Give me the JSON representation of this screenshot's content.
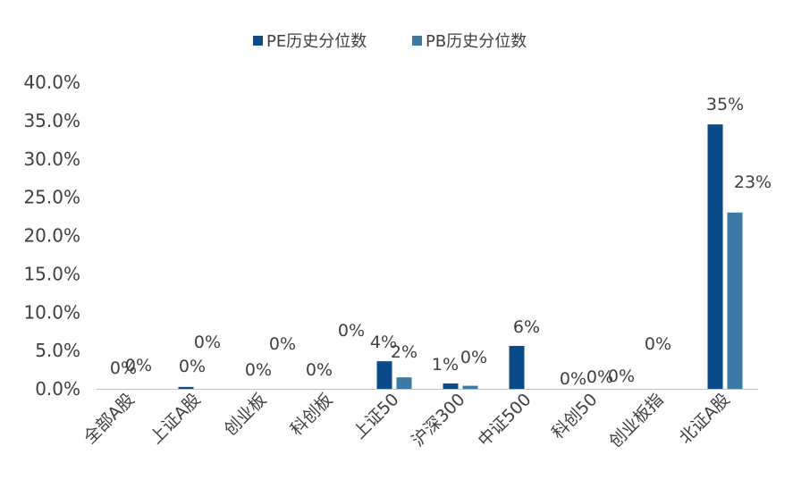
{
  "chart_data": {
    "type": "bar",
    "title": "",
    "xlabel": "",
    "ylabel": "",
    "ylim": [
      0,
      40
    ],
    "yticks": [
      "0.0%",
      "5.0%",
      "10.0%",
      "15.0%",
      "20.0%",
      "25.0%",
      "30.0%",
      "35.0%",
      "40.0%"
    ],
    "legend_position": "top-center",
    "categories": [
      "全部A股",
      "上证A股",
      "创业板",
      "科创板",
      "上证50",
      "沪深300",
      "中证500",
      "科创50",
      "创业板指",
      "北证A股"
    ],
    "series": [
      {
        "name": "PE历史分位数",
        "color": "#0b4a8b",
        "values": [
          0.0,
          0.25,
          0.0,
          0.0,
          3.6,
          0.7,
          5.6,
          0.0,
          0.0,
          34.5
        ],
        "labels": [
          "0%",
          "0%",
          "0%",
          "0%",
          "4%",
          "1%",
          "6%",
          "0%",
          "0%",
          "35%"
        ]
      },
      {
        "name": "PB历史分位数",
        "color": "#3d7aa3",
        "values": [
          0.0,
          0.0,
          0.0,
          0.0,
          1.5,
          0.4,
          0.0,
          0.0,
          0.0,
          23.0
        ],
        "labels": [
          "0%",
          "0%",
          "0%",
          "0%",
          "2%",
          "0%",
          "",
          "0%",
          "0%",
          ""
        ],
        "extra_labels": [
          {
            "category": "北证A股",
            "text": "23%"
          }
        ]
      }
    ]
  }
}
